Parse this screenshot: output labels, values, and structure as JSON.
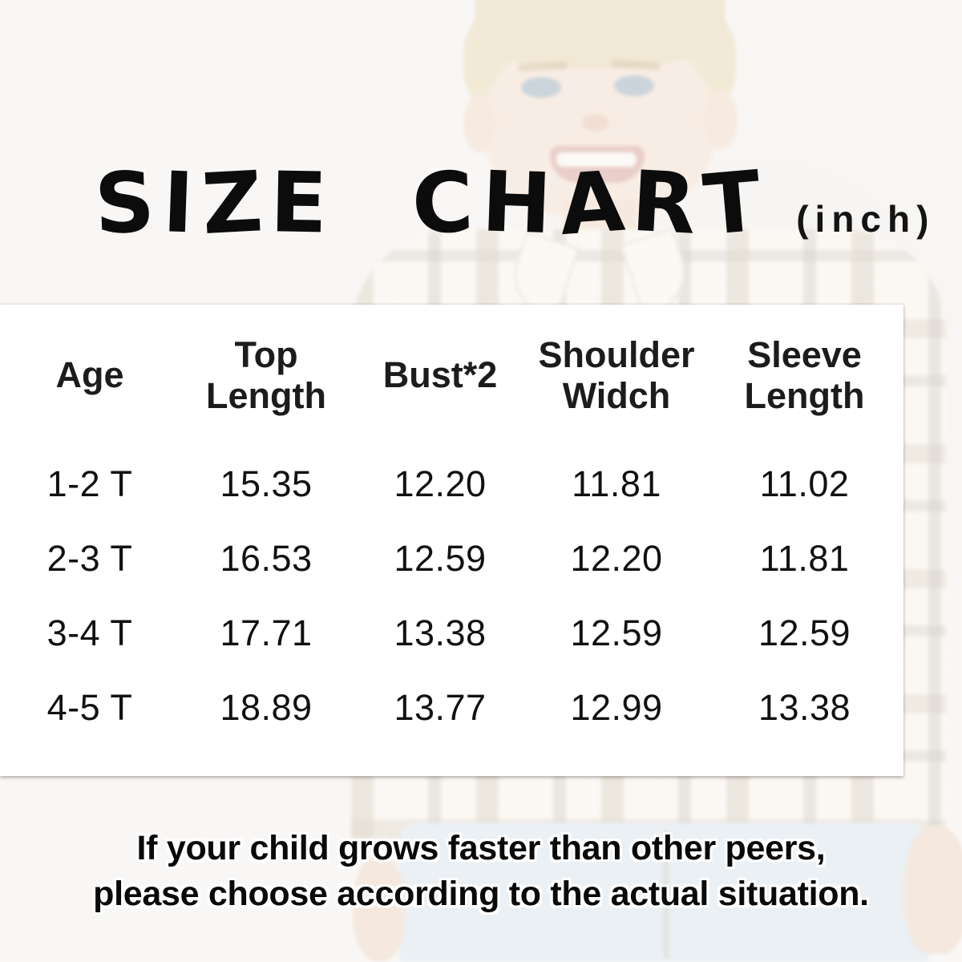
{
  "header": {
    "title": "SIZE CHART",
    "unit": "(inch)"
  },
  "table": {
    "columns": [
      {
        "line1": "Age",
        "line2": ""
      },
      {
        "line1": "Top",
        "line2": "Length"
      },
      {
        "line1": "Bust*2",
        "line2": ""
      },
      {
        "line1": "Shoulder",
        "line2": "Widch"
      },
      {
        "line1": "Sleeve",
        "line2": "Length"
      }
    ],
    "rows": [
      {
        "age": "1-2 T",
        "top_length": "15.35",
        "bust2": "12.20",
        "shoulder_width": "11.81",
        "sleeve_length": "11.02"
      },
      {
        "age": "2-3 T",
        "top_length": "16.53",
        "bust2": "12.59",
        "shoulder_width": "12.20",
        "sleeve_length": "11.81"
      },
      {
        "age": "3-4 T",
        "top_length": "17.71",
        "bust2": "13.38",
        "shoulder_width": "12.59",
        "sleeve_length": "12.59"
      },
      {
        "age": "4-5 T",
        "top_length": "18.89",
        "bust2": "13.77",
        "shoulder_width": "12.99",
        "sleeve_length": "13.38"
      }
    ]
  },
  "footer": {
    "line1": "If your child grows faster than other peers,",
    "line2": "please choose according to the actual situation."
  },
  "colors": {
    "background": "#f2eeea",
    "panel": "#ffffff",
    "text": "#111111",
    "plaid_base": "#f3ecdf",
    "jeans": "#d2dde6"
  },
  "chart_data": {
    "type": "table",
    "title": "SIZE CHART (inch)",
    "columns": [
      "Age",
      "Top Length",
      "Bust*2",
      "Shoulder Widch",
      "Sleeve Length"
    ],
    "rows": [
      [
        "1-2 T",
        15.35,
        12.2,
        11.81,
        11.02
      ],
      [
        "2-3 T",
        16.53,
        12.59,
        12.2,
        11.81
      ],
      [
        "3-4 T",
        17.71,
        13.38,
        12.59,
        12.59
      ],
      [
        "4-5 T",
        18.89,
        13.77,
        12.99,
        13.38
      ]
    ],
    "note": "If your child grows faster than other peers, please choose according to the actual situation."
  }
}
